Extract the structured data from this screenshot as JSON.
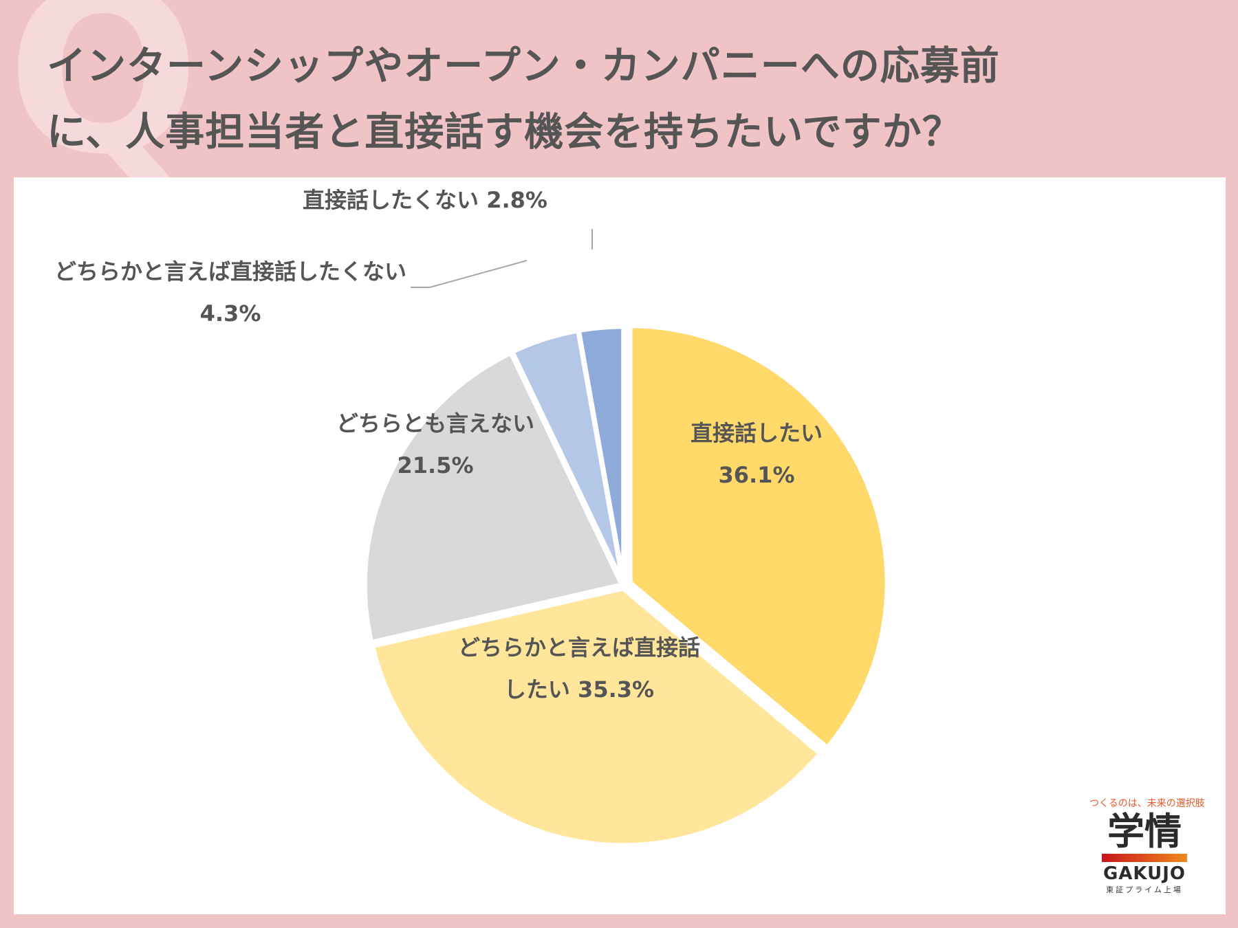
{
  "decor": {
    "q_letter": "Q"
  },
  "title": {
    "line1": "インターンシップやオープン・カンパニーへの応募前",
    "line2": "に、人事担当者と直接話す機会を持ちたいですか？"
  },
  "chart_data": {
    "type": "pie",
    "slices": [
      {
        "label_lines": [
          "直接話したい",
          "36.1%"
        ],
        "value": 36.1,
        "color": "#ffd96a"
      },
      {
        "label_lines": [
          "どちらかと言えば直接話",
          "したい 35.3%"
        ],
        "value": 35.3,
        "color": "#ffe69a"
      },
      {
        "label_lines": [
          "どちらとも言えない",
          "21.5%"
        ],
        "value": 21.5,
        "color": "#d9d9d9"
      },
      {
        "label_lines": [
          "どちらかと言えば直接話したくない",
          "4.3%"
        ],
        "value": 4.3,
        "color": "#b4c7e7"
      },
      {
        "label_lines": [
          "直接話したくない 2.8%"
        ],
        "value": 2.8,
        "color": "#8eaadb"
      }
    ]
  },
  "logo": {
    "tagline": "つくるのは、未来の選択肢",
    "kanji": "学情",
    "name": "GAKUJO",
    "sub": "東証プライム上場"
  }
}
